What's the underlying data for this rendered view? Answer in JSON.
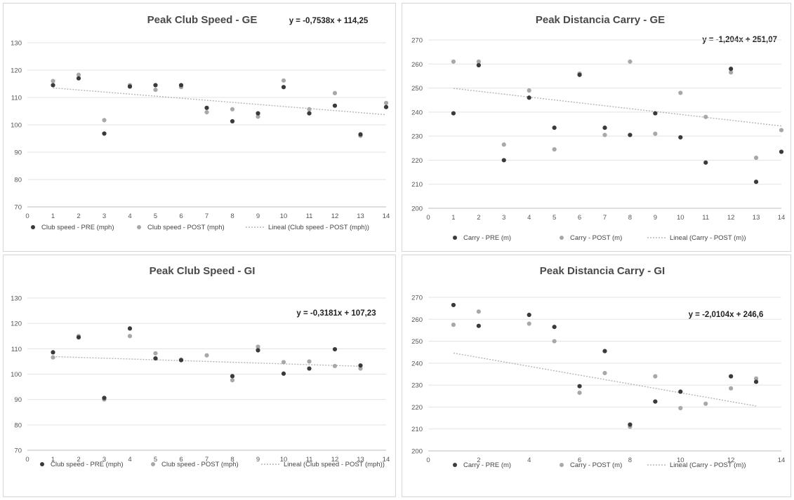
{
  "colors": {
    "pre": "#3a3a3a",
    "post": "#a8a8a8",
    "trend": "#b5b5b5"
  },
  "chart_data": [
    {
      "type": "scatter",
      "title": "Peak Club Speed - GE",
      "equation": "y = -0,7538x + 114,25",
      "xlim": [
        0,
        14
      ],
      "ylim": [
        70,
        130
      ],
      "xticks": [
        0,
        1,
        2,
        3,
        4,
        5,
        6,
        7,
        8,
        9,
        10,
        11,
        12,
        13,
        14
      ],
      "yticks": [
        70,
        80,
        90,
        100,
        110,
        120,
        130
      ],
      "grid": "horizontal",
      "legend_position": "bottom",
      "x": [
        1,
        2,
        3,
        4,
        5,
        6,
        7,
        8,
        9,
        10,
        11,
        12,
        13,
        14
      ],
      "series": [
        {
          "name": "Club speed - PRE (mph)",
          "kind": "pre",
          "values": [
            114.5,
            117,
            96.8,
            114,
            114.5,
            114.5,
            106.2,
            101.3,
            104.2,
            113.8,
            104.2,
            107,
            96.5,
            106.5
          ]
        },
        {
          "name": "Club speed - POST (mph)",
          "kind": "post",
          "values": [
            116,
            118.3,
            101.7,
            114.5,
            112.8,
            113.8,
            104.6,
            105.7,
            103,
            116.2,
            105.7,
            111.6,
            96,
            108
          ]
        }
      ],
      "trend": {
        "name": "Lineal (Club speed - POST (mph))",
        "slope": -0.7538,
        "intercept": 114.25,
        "x_range": [
          1,
          14
        ]
      }
    },
    {
      "type": "scatter",
      "title": "Peak Distancia Carry  - GE",
      "equation": "y = -1,204x + 251,07",
      "xlim": [
        0,
        14
      ],
      "ylim": [
        200,
        270
      ],
      "xticks": [
        0,
        1,
        2,
        3,
        4,
        5,
        6,
        7,
        8,
        9,
        10,
        11,
        12,
        13,
        14
      ],
      "yticks": [
        200,
        210,
        220,
        230,
        240,
        250,
        260,
        270
      ],
      "grid": "horizontal",
      "legend_position": "bottom",
      "x": [
        1,
        2,
        3,
        4,
        5,
        6,
        7,
        8,
        9,
        10,
        11,
        12,
        13,
        14
      ],
      "series": [
        {
          "name": "Carry - PRE (m)",
          "kind": "pre",
          "values": [
            239.5,
            259.5,
            220,
            246,
            233.5,
            255.5,
            233.5,
            230.5,
            239.5,
            229.5,
            219,
            258,
            211,
            223.5
          ]
        },
        {
          "name": "Carry - POST (m)",
          "kind": "post",
          "values": [
            261,
            261,
            226.5,
            249,
            224.5,
            256,
            230.5,
            261,
            231,
            248,
            238,
            256.5,
            221,
            232.5
          ]
        }
      ],
      "trend": {
        "name": "Lineal (Carry - POST (m))",
        "slope": -1.204,
        "intercept": 251.07,
        "x_range": [
          1,
          14
        ]
      }
    },
    {
      "type": "scatter",
      "title": "Peak Club Speed - GI",
      "equation": "y = -0,3181x + 107,23",
      "xlim": [
        0,
        14
      ],
      "ylim": [
        70,
        130
      ],
      "xticks": [
        0,
        1,
        2,
        3,
        4,
        5,
        6,
        7,
        8,
        9,
        10,
        11,
        12,
        13,
        14
      ],
      "yticks": [
        70,
        80,
        90,
        100,
        110,
        120,
        130
      ],
      "grid": "horizontal",
      "legend_position": "bottom",
      "x": [
        1,
        2,
        3,
        4,
        5,
        6,
        7,
        8,
        9,
        10,
        11,
        12,
        13
      ],
      "series": [
        {
          "name": "Club speed - PRE (mph)",
          "kind": "pre",
          "values": [
            108.6,
            114.5,
            90.6,
            118,
            106.2,
            105.5,
            null,
            99.2,
            109.4,
            100.2,
            102.2,
            109.8,
            103.4
          ]
        },
        {
          "name": "Club speed - POST (mph)",
          "kind": "post",
          "values": [
            106.6,
            115,
            90,
            115,
            108.2,
            105.7,
            107.4,
            97.6,
            110.8,
            104.7,
            105,
            103.2,
            102.2
          ]
        }
      ],
      "trend": {
        "name": "Lineal (Club speed - POST (mph))",
        "slope": -0.3181,
        "intercept": 107.23,
        "x_range": [
          1,
          13
        ]
      }
    },
    {
      "type": "scatter",
      "title": "Peak Distancia Carry - GI",
      "equation": "y = -2,0104x + 246,6",
      "xlim": [
        0,
        14
      ],
      "ylim": [
        200,
        270
      ],
      "xticks": [
        0,
        2,
        4,
        6,
        8,
        10,
        12,
        14
      ],
      "yticks": [
        200,
        210,
        220,
        230,
        240,
        250,
        260,
        270
      ],
      "grid": "horizontal",
      "legend_position": "bottom",
      "x": [
        1,
        2,
        4,
        5,
        6,
        7,
        8,
        9,
        10,
        11,
        12,
        13
      ],
      "series": [
        {
          "name": "Carry - PRE (m)",
          "kind": "pre",
          "values": [
            266.5,
            257,
            262,
            256.5,
            229.5,
            245.5,
            212,
            222.5,
            227,
            null,
            234,
            231.5
          ]
        },
        {
          "name": "Carry - POST (m)",
          "kind": "post",
          "values": [
            257.5,
            263.5,
            258,
            250,
            226.5,
            235.5,
            211,
            234,
            219.5,
            221.5,
            228.5,
            233
          ]
        }
      ],
      "trend": {
        "name": "Lineal (Carry - POST (m))",
        "slope": -2.0104,
        "intercept": 246.6,
        "x_range": [
          1,
          13
        ]
      }
    }
  ]
}
